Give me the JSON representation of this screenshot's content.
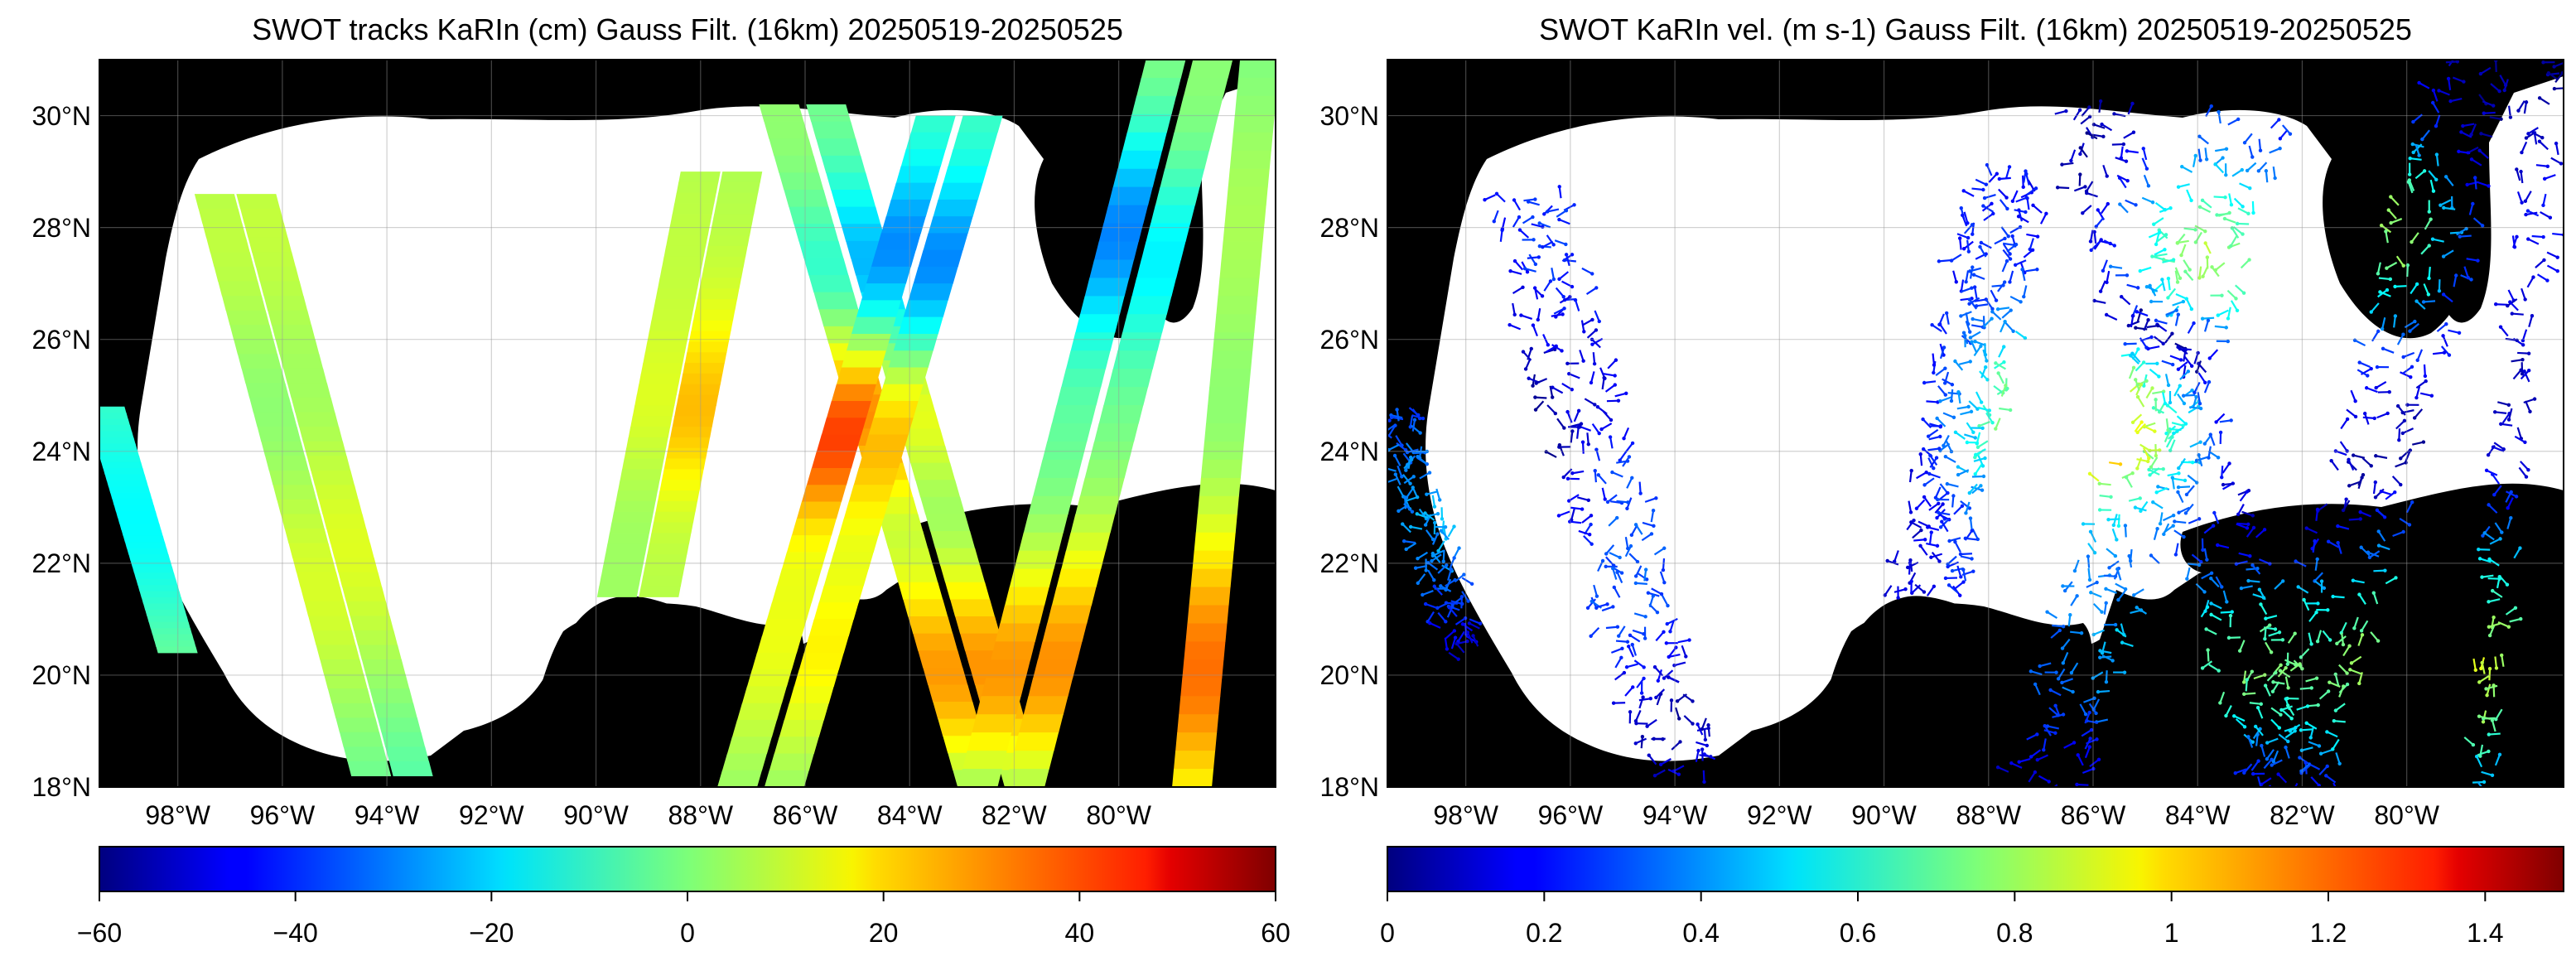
{
  "panels": [
    {
      "title": "SWOT tracks KaRIn (cm) Gauss Filt. (16km) 20250519-20250525",
      "colorbar": {
        "colormap": "jet",
        "min": -60,
        "max": 60,
        "ticks": [
          "−60",
          "−40",
          "−20",
          "0",
          "20",
          "40",
          "60"
        ]
      }
    },
    {
      "title": "SWOT KaRIn vel. (m s-1) Gauss Filt. (16km) 20250519-20250525",
      "colorbar": {
        "colormap": "jet",
        "min": 0,
        "max": 1.5,
        "ticks": [
          "0",
          "0.2",
          "0.4",
          "0.6",
          "0.8",
          "1",
          "1.2",
          "1.4"
        ]
      }
    }
  ],
  "map": {
    "lon_range": [
      -99.5,
      -77.0
    ],
    "lat_range": [
      18,
      31
    ],
    "lat_labels": [
      "30°N",
      "28°N",
      "26°N",
      "24°N",
      "22°N",
      "20°N",
      "18°N"
    ],
    "lon_labels": [
      "98°W",
      "96°W",
      "94°W",
      "92°W",
      "90°W",
      "88°W",
      "86°W",
      "84°W",
      "82°W",
      "80°W"
    ],
    "land_color": "#000000",
    "ocean_color": "#ffffff",
    "grid": true
  }
}
